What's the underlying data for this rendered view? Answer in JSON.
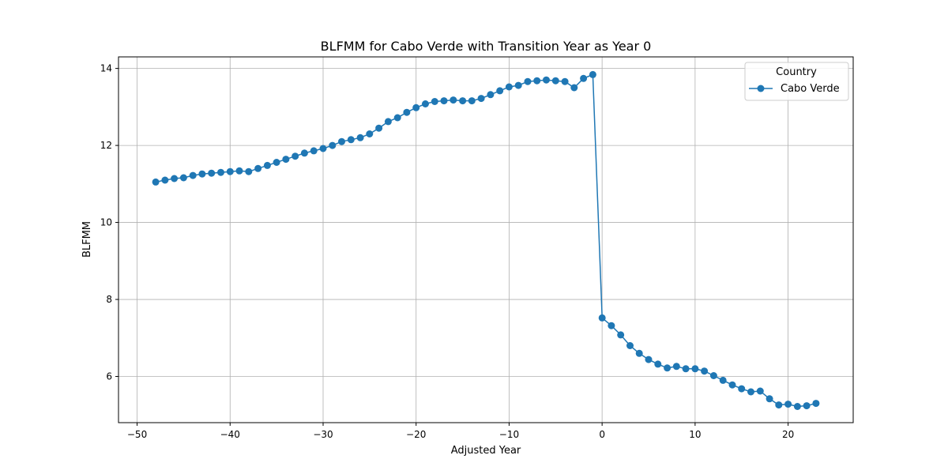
{
  "chart_data": {
    "type": "line",
    "title": "BLFMM for Cabo Verde with Transition Year as Year 0",
    "xlabel": "Adjusted Year",
    "ylabel": "BLFMM",
    "xlim": [
      -52,
      27
    ],
    "ylim": [
      4.8,
      14.3
    ],
    "xticks": [
      -50,
      -40,
      -30,
      -20,
      -10,
      0,
      10,
      20
    ],
    "xtick_labels": [
      "−50",
      "−40",
      "−30",
      "−20",
      "−10",
      "0",
      "10",
      "20"
    ],
    "yticks": [
      6,
      8,
      10,
      12,
      14
    ],
    "ytick_labels": [
      "6",
      "8",
      "10",
      "12",
      "14"
    ],
    "grid": true,
    "legend": {
      "title": "Country",
      "placement": "top-right"
    },
    "colors": {
      "series": "#1f77b4",
      "grid": "#b0b0b0",
      "axis": "#000000"
    },
    "series": [
      {
        "name": "Cabo Verde",
        "marker": "circle",
        "x": [
          -48,
          -47,
          -46,
          -45,
          -44,
          -43,
          -42,
          -41,
          -40,
          -39,
          -38,
          -37,
          -36,
          -35,
          -34,
          -33,
          -32,
          -31,
          -30,
          -29,
          -28,
          -27,
          -26,
          -25,
          -24,
          -23,
          -22,
          -21,
          -20,
          -19,
          -18,
          -17,
          -16,
          -15,
          -14,
          -13,
          -12,
          -11,
          -10,
          -9,
          -8,
          -7,
          -6,
          -5,
          -4,
          -3,
          -2,
          -1,
          0,
          1,
          2,
          3,
          4,
          5,
          6,
          7,
          8,
          9,
          10,
          11,
          12,
          13,
          14,
          15,
          16,
          17,
          18,
          19,
          20,
          21,
          22,
          23
        ],
        "y": [
          11.05,
          11.1,
          11.14,
          11.16,
          11.22,
          11.26,
          11.28,
          11.3,
          11.32,
          11.34,
          11.32,
          11.4,
          11.48,
          11.56,
          11.64,
          11.72,
          11.8,
          11.86,
          11.92,
          12.0,
          12.1,
          12.15,
          12.2,
          12.3,
          12.45,
          12.62,
          12.72,
          12.86,
          12.98,
          13.08,
          13.14,
          13.16,
          13.18,
          13.16,
          13.16,
          13.22,
          13.32,
          13.42,
          13.52,
          13.56,
          13.66,
          13.68,
          13.7,
          13.68,
          13.66,
          13.5,
          13.74,
          13.84,
          7.52,
          7.32,
          7.08,
          6.8,
          6.6,
          6.44,
          6.32,
          6.22,
          6.26,
          6.2,
          6.2,
          6.14,
          6.02,
          5.9,
          5.78,
          5.68,
          5.6,
          5.62,
          5.42,
          5.26,
          5.28,
          5.22,
          5.24,
          5.3
        ]
      }
    ]
  }
}
